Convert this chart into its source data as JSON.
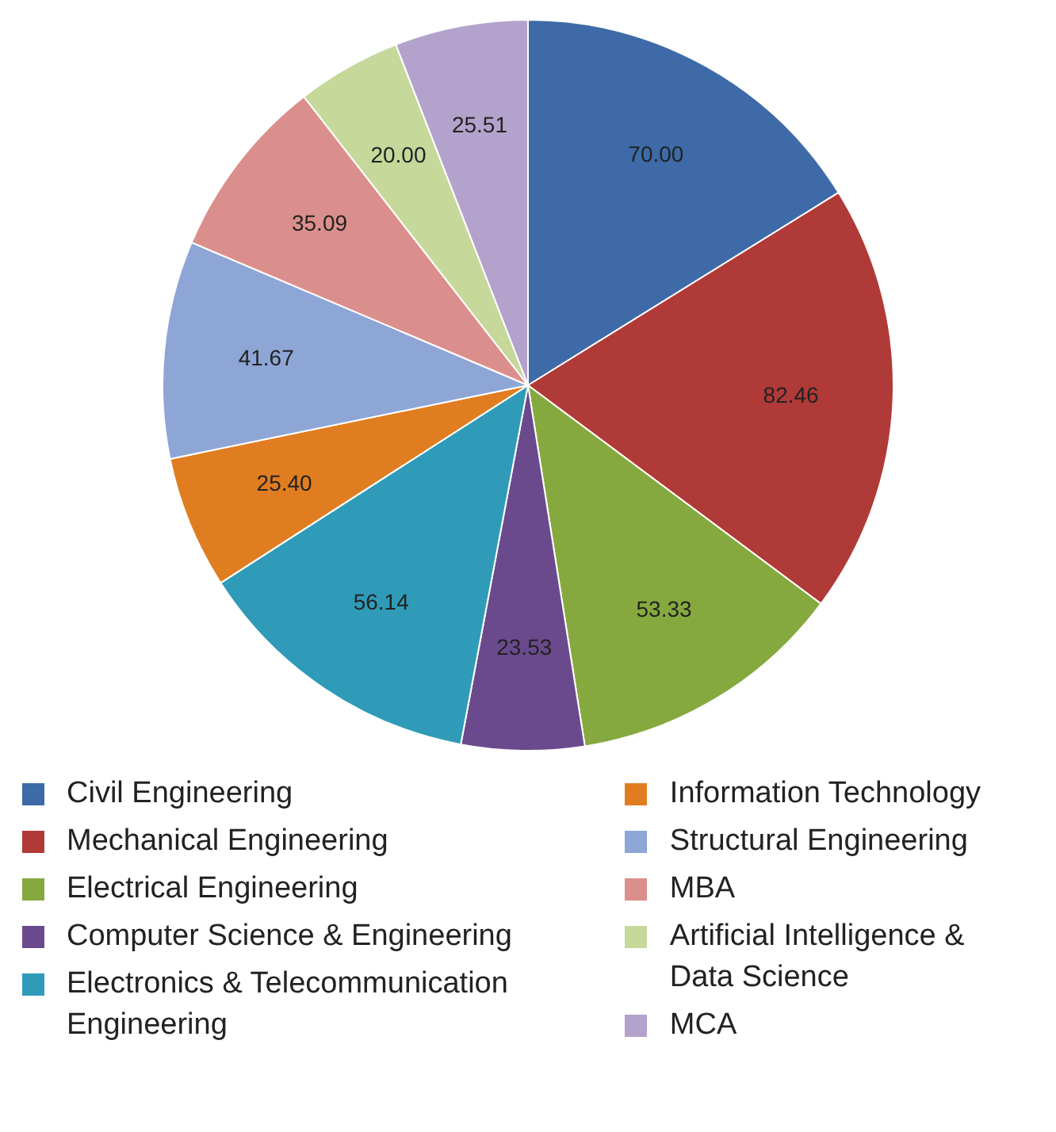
{
  "chart_data": {
    "type": "pie",
    "categories": [
      "Civil Engineering",
      "Mechanical Engineering",
      "Electrical Engineering",
      "Computer Science & Engineering",
      "Electronics & Telecommunication Engineering",
      "Information Technology",
      "Structural Engineering",
      "MBA",
      "Artificial Intelligence & Data Science",
      "MCA"
    ],
    "values": [
      70.0,
      82.46,
      53.33,
      23.53,
      56.14,
      25.4,
      41.67,
      35.09,
      20.0,
      25.51
    ],
    "value_labels": [
      "70.00",
      "82.46",
      "53.33",
      "23.53",
      "56.14",
      "25.40",
      "41.67",
      "35.09",
      "20.00",
      "25.51"
    ],
    "colors": [
      "#3e6aa8",
      "#b03a37",
      "#86a93f",
      "#6a4a8c",
      "#2f9bb8",
      "#e07d20",
      "#8ea6d6",
      "#db8f8c",
      "#c6d89a",
      "#b3a2cc"
    ],
    "legend": "bottom"
  }
}
